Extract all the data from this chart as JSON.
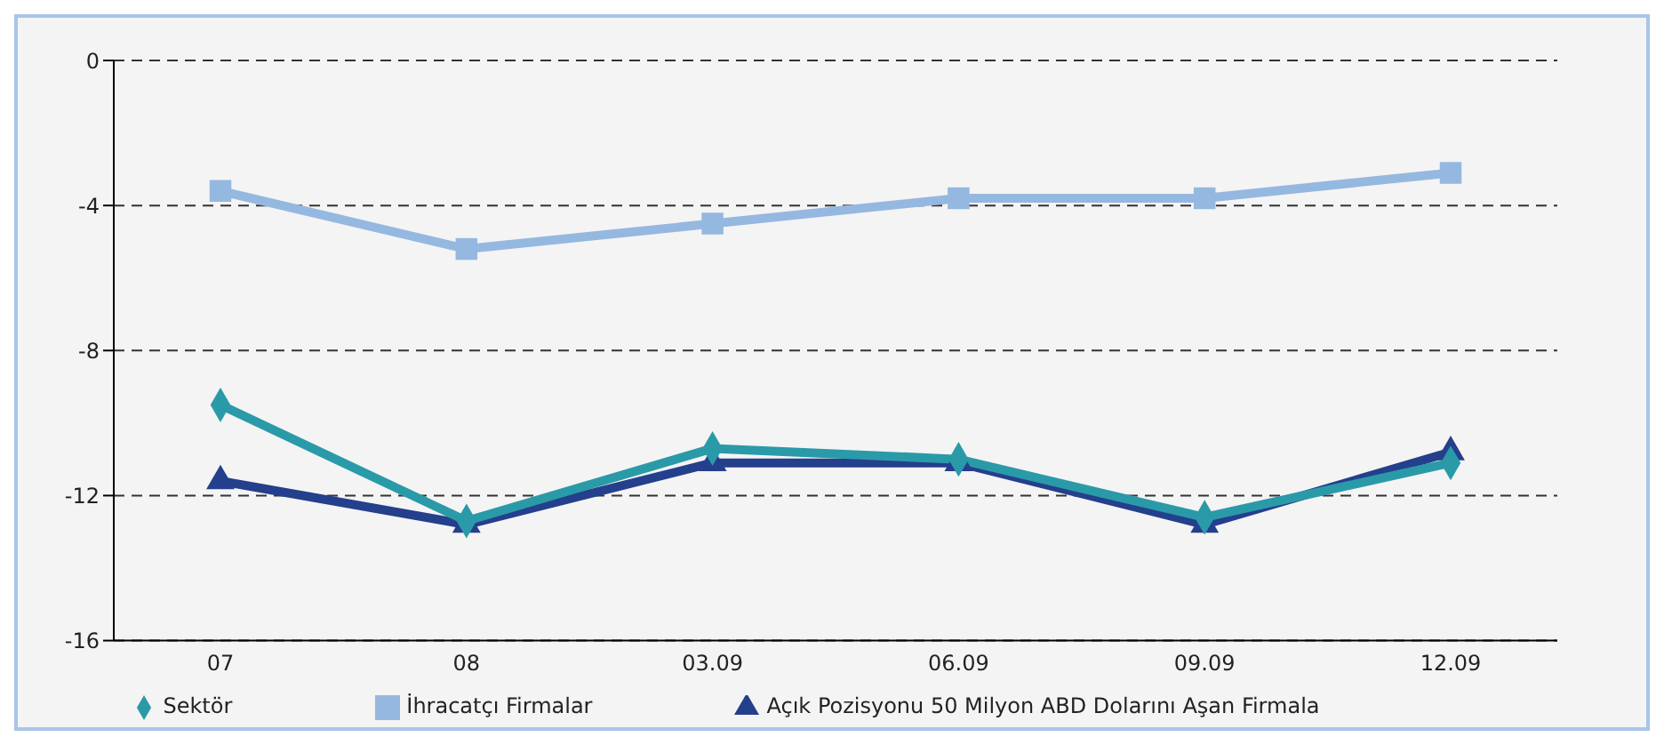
{
  "chart_data": {
    "type": "line",
    "categories": [
      "07",
      "08",
      "03.09",
      "06.09",
      "09.09",
      "12.09"
    ],
    "series": [
      {
        "name": "Sektör",
        "color": "#2a9aa8",
        "marker": "diamond",
        "values": [
          -9.5,
          -12.7,
          -10.7,
          -11.0,
          -12.6,
          -11.1
        ]
      },
      {
        "name": "İhracatçı Firmalar",
        "color": "#95b8e0",
        "marker": "square",
        "values": [
          -3.6,
          -5.2,
          -4.5,
          -3.8,
          -3.8,
          -3.1
        ]
      },
      {
        "name": "Açık Pozisyonu 50 Milyon ABD Dolarını Aşan Firmala",
        "color": "#243f8c",
        "marker": "triangle",
        "values": [
          -11.6,
          -12.8,
          -11.1,
          -11.1,
          -12.8,
          -10.8
        ]
      }
    ],
    "ylim": [
      -16,
      0
    ],
    "yticks": [
      0,
      -4,
      -8,
      -12,
      -16
    ],
    "grid": "y",
    "line_style": "solid",
    "legend": "bottom"
  }
}
